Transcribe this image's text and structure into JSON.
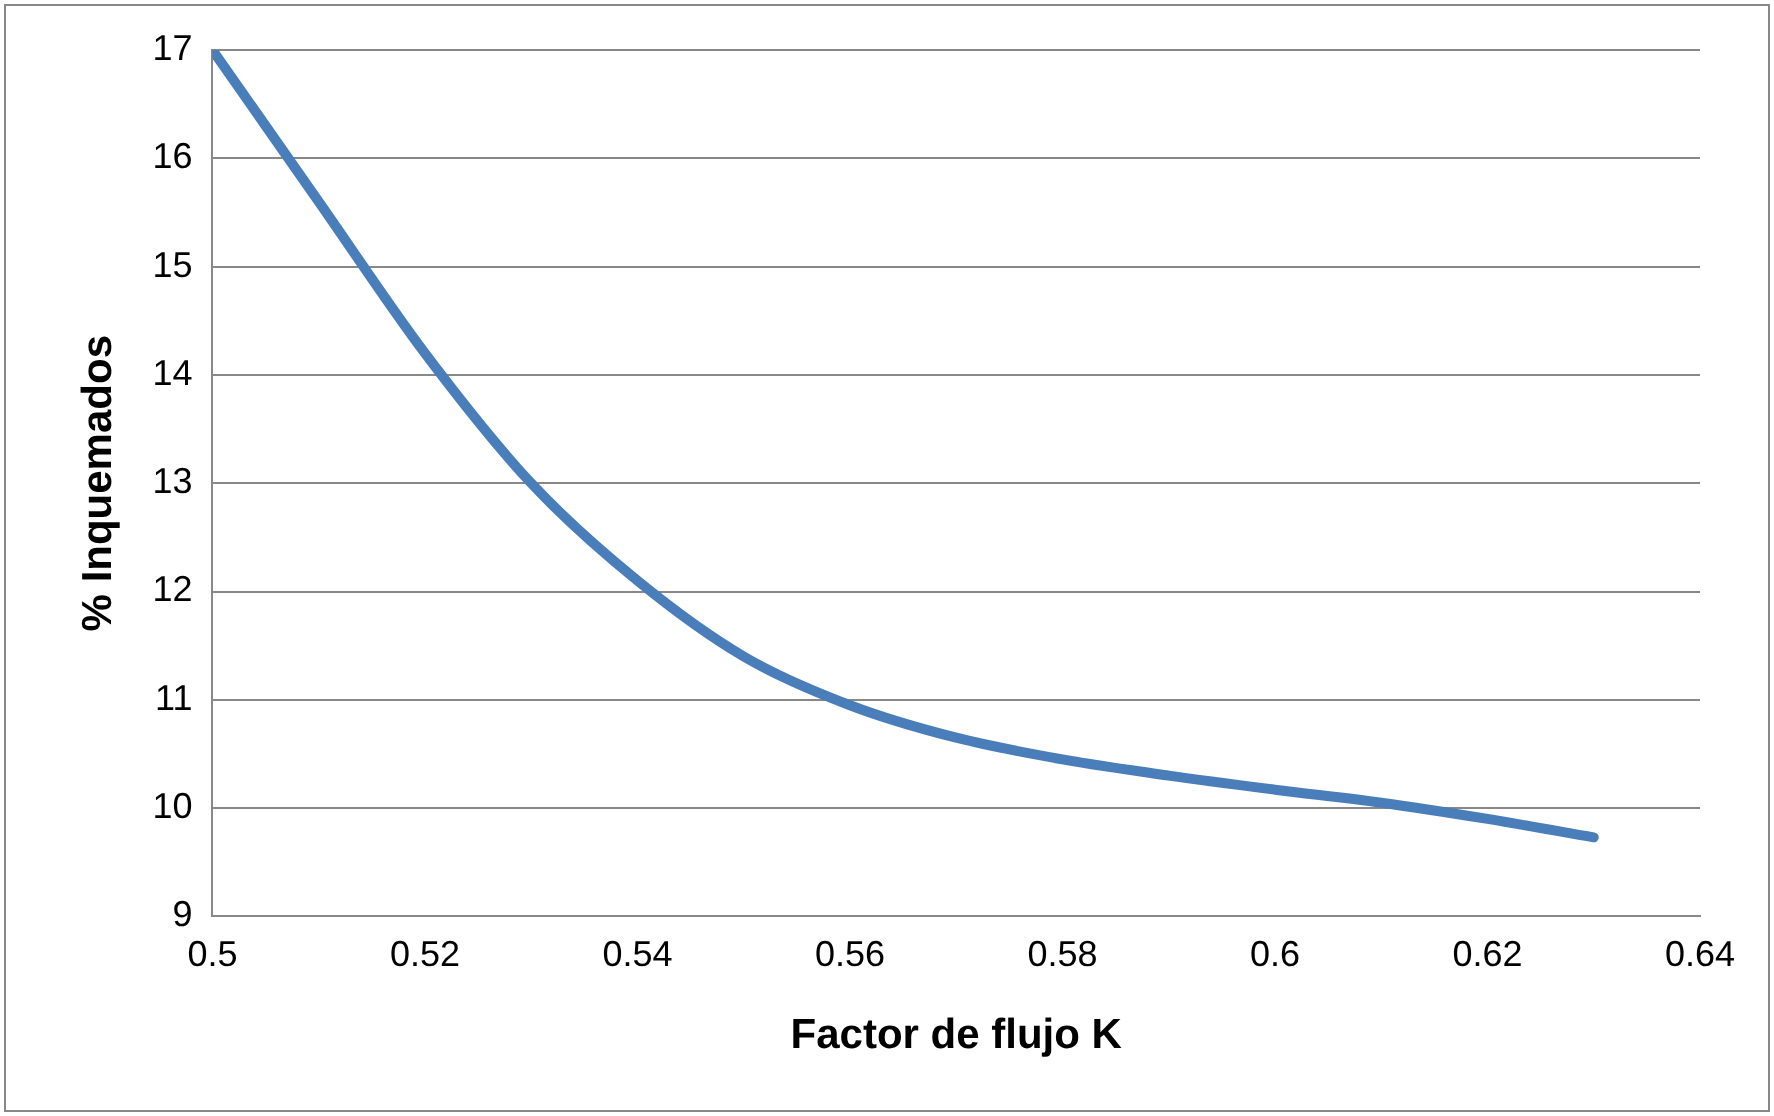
{
  "chart_data": {
    "type": "line",
    "xlabel": "Factor de flujo K",
    "ylabel": "% Inquemados",
    "x": [
      0.5,
      0.51,
      0.52,
      0.53,
      0.54,
      0.55,
      0.56,
      0.57,
      0.58,
      0.59,
      0.6,
      0.61,
      0.62,
      0.63
    ],
    "series": [
      {
        "color": "#4a7ebb",
        "values": [
          17,
          15.6,
          14.2,
          13.0,
          12.1,
          11.4,
          10.95,
          10.65,
          10.45,
          10.3,
          10.17,
          10.05,
          9.9,
          9.73
        ]
      }
    ],
    "xlim": [
      0.5,
      0.64
    ],
    "xticks": [
      0.5,
      0.52,
      0.54,
      0.56,
      0.58,
      0.6,
      0.62,
      0.64
    ],
    "ylim": [
      9,
      17
    ],
    "yticks": [
      9,
      10,
      11,
      12,
      13,
      14,
      15,
      16,
      17
    ],
    "grid": "y",
    "legend": false,
    "marker": "none",
    "line_style": "solid"
  }
}
